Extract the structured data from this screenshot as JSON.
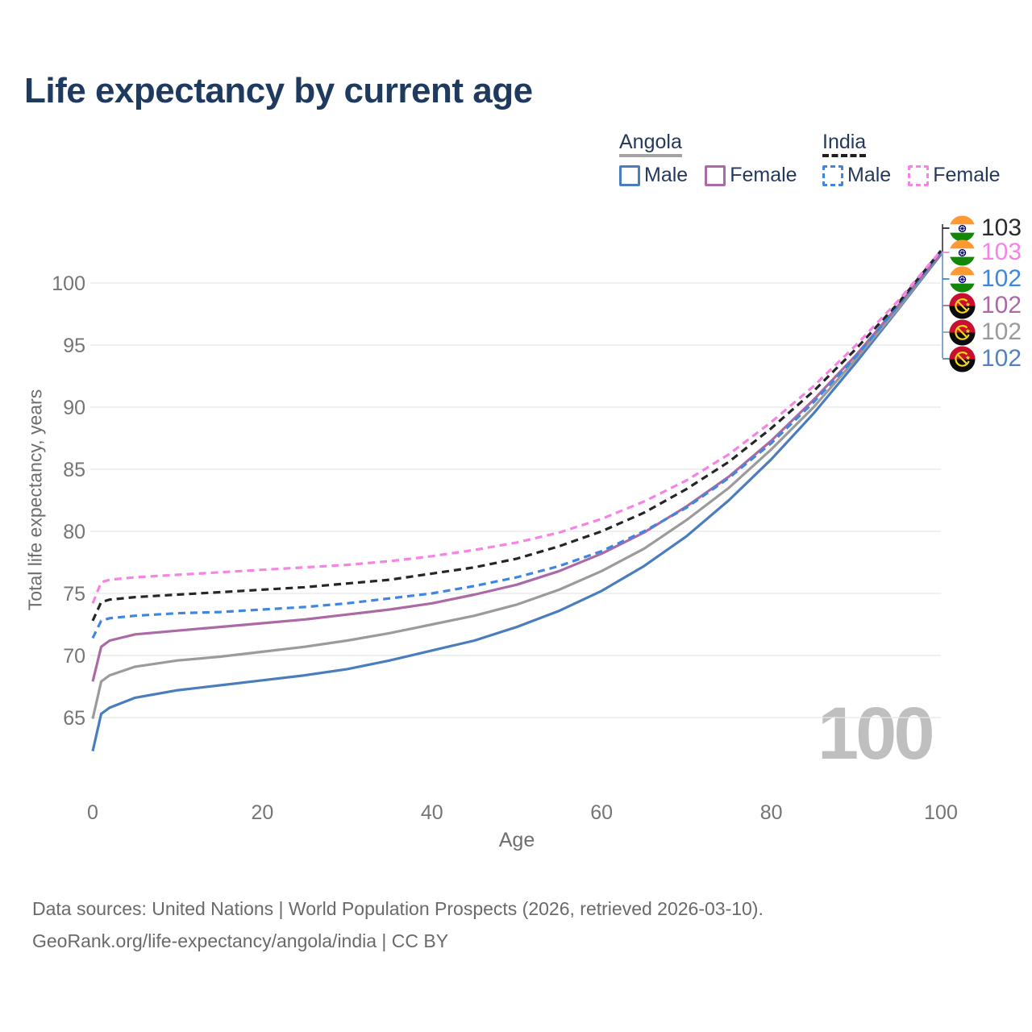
{
  "title": "Life expectancy by current age",
  "legend": {
    "groups": [
      {
        "label": "Angola",
        "underline_style": "solid",
        "underline_color": "#a3a3a3",
        "items": [
          {
            "label": "Male",
            "color": "#4a7dbd",
            "dashed": false
          },
          {
            "label": "Female",
            "color": "#ab6aa5",
            "dashed": false
          }
        ]
      },
      {
        "label": "India",
        "underline_style": "dashed",
        "underline_color": "#1f1f1f",
        "items": [
          {
            "label": "Male",
            "color": "#3f86e0",
            "dashed": true
          },
          {
            "label": "Female",
            "color": "#f584e4",
            "dashed": true
          }
        ]
      }
    ]
  },
  "y_axis": {
    "label": "Total life expectancy, years",
    "ticks": [
      65,
      70,
      75,
      80,
      85,
      90,
      95,
      100
    ]
  },
  "x_axis": {
    "label": "Age",
    "ticks": [
      0,
      20,
      40,
      60,
      80,
      100
    ]
  },
  "watermark": "100",
  "end_labels": [
    {
      "value": "103",
      "color": "#2b2b2b",
      "flag": "india",
      "series": "India Both sexes"
    },
    {
      "value": "103",
      "color": "#f584e4",
      "flag": "india",
      "series": "India Female"
    },
    {
      "value": "102",
      "color": "#3f86e0",
      "flag": "india",
      "series": "India Male"
    },
    {
      "value": "102",
      "color": "#ab6aa5",
      "flag": "angola",
      "series": "Angola Female"
    },
    {
      "value": "102",
      "color": "#9b9b9b",
      "flag": "angola",
      "series": "Angola Both sexes"
    },
    {
      "value": "102",
      "color": "#5581c0",
      "flag": "angola",
      "series": "Angola Male"
    }
  ],
  "footer": {
    "line1": "Data sources: United Nations | World Population Prospects (2026, retrieved 2026-03-10).",
    "line2": "GeoRank.org/life-expectancy/angola/india | CC BY"
  },
  "chart_data": {
    "type": "line",
    "title": "Life expectancy by current age",
    "xlabel": "Age",
    "ylabel": "Total life expectancy, years",
    "xlim": [
      0,
      100
    ],
    "ylim": [
      61,
      103
    ],
    "grid": "horizontal",
    "x": [
      0,
      1,
      2,
      5,
      10,
      15,
      20,
      25,
      30,
      35,
      40,
      45,
      50,
      55,
      60,
      65,
      70,
      75,
      80,
      85,
      90,
      95,
      100
    ],
    "series": [
      {
        "name": "Angola Male",
        "color": "#4a7dbd",
        "dashed": false,
        "values": [
          62.3,
          65.3,
          65.8,
          66.6,
          67.2,
          67.6,
          68.0,
          68.4,
          68.9,
          69.6,
          70.4,
          71.2,
          72.3,
          73.6,
          75.2,
          77.2,
          79.6,
          82.5,
          85.8,
          89.5,
          93.6,
          97.9,
          102.3
        ]
      },
      {
        "name": "Angola Both sexes",
        "color": "#9b9b9b",
        "dashed": false,
        "values": [
          64.9,
          67.9,
          68.4,
          69.1,
          69.6,
          69.9,
          70.3,
          70.7,
          71.2,
          71.8,
          72.5,
          73.2,
          74.1,
          75.3,
          76.8,
          78.6,
          80.9,
          83.5,
          86.6,
          90.0,
          93.9,
          98.0,
          102.4
        ]
      },
      {
        "name": "Angola Female",
        "color": "#ab6aa5",
        "dashed": false,
        "values": [
          67.9,
          70.7,
          71.2,
          71.7,
          72.0,
          72.3,
          72.6,
          72.9,
          73.3,
          73.7,
          74.2,
          74.9,
          75.7,
          76.8,
          78.2,
          79.9,
          82.0,
          84.4,
          87.3,
          90.6,
          94.2,
          98.2,
          102.4
        ]
      },
      {
        "name": "India Male",
        "color": "#3f86e0",
        "dashed": true,
        "values": [
          71.4,
          72.8,
          73.0,
          73.2,
          73.4,
          73.5,
          73.7,
          73.9,
          74.2,
          74.6,
          75.0,
          75.6,
          76.3,
          77.2,
          78.4,
          80.0,
          81.9,
          84.3,
          87.1,
          90.4,
          94.1,
          98.2,
          102.5
        ]
      },
      {
        "name": "India Both sexes",
        "color": "#262626",
        "dashed": true,
        "values": [
          72.8,
          74.3,
          74.5,
          74.7,
          74.9,
          75.1,
          75.3,
          75.5,
          75.8,
          76.1,
          76.6,
          77.1,
          77.8,
          78.8,
          80.0,
          81.5,
          83.4,
          85.6,
          88.3,
          91.3,
          94.7,
          98.4,
          102.6
        ]
      },
      {
        "name": "India Female",
        "color": "#f584e4",
        "dashed": true,
        "values": [
          74.2,
          75.9,
          76.1,
          76.3,
          76.5,
          76.7,
          76.9,
          77.1,
          77.3,
          77.6,
          78.0,
          78.5,
          79.1,
          79.9,
          81.0,
          82.4,
          84.1,
          86.2,
          88.8,
          91.7,
          95.0,
          98.6,
          102.6
        ]
      }
    ],
    "end_values": [
      102,
      102,
      102,
      102,
      103,
      103
    ],
    "legend_position": "top-right"
  }
}
